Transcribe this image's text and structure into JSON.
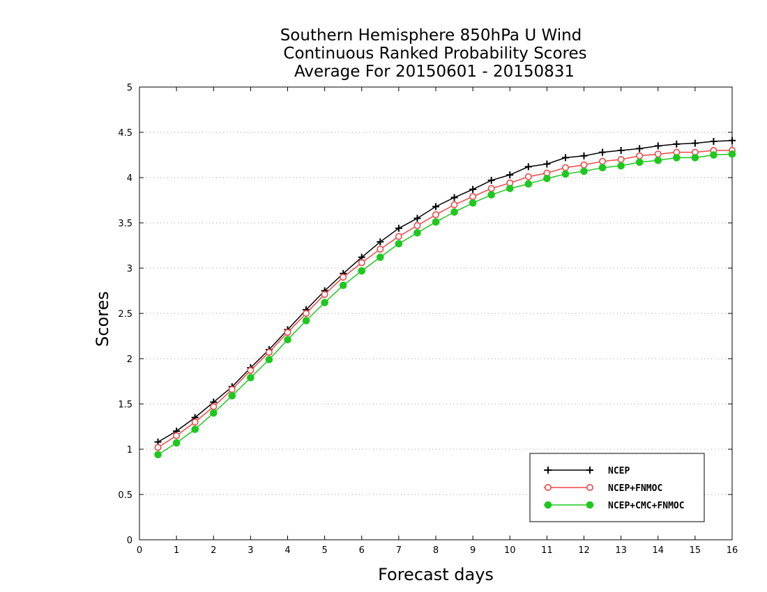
{
  "chart_data": {
    "type": "line",
    "title_lines": [
      "Southern Hemisphere 850hPa U Wind",
      "Continuous Ranked Probability Scores",
      "Average For 20150601 - 20150831"
    ],
    "xlabel": "Forecast days",
    "ylabel": "Scores",
    "xlim": [
      0,
      16
    ],
    "ylim": [
      0,
      5
    ],
    "x_ticks": [
      "0",
      "1",
      "2",
      "3",
      "4",
      "5",
      "6",
      "7",
      "8",
      "9",
      "10",
      "11",
      "12",
      "13",
      "14",
      "15",
      "16"
    ],
    "y_ticks": [
      "0",
      "0.5",
      "1",
      "1.5",
      "2",
      "2.5",
      "3",
      "3.5",
      "4",
      "4.5",
      "5"
    ],
    "grid": "horizontal dotted",
    "legend_position": "bottom-right",
    "x": [
      0.5,
      1,
      1.5,
      2,
      2.5,
      3,
      3.5,
      4,
      4.5,
      5,
      5.5,
      6,
      6.5,
      7,
      7.5,
      8,
      8.5,
      9,
      9.5,
      10,
      10.5,
      11,
      11.5,
      12,
      12.5,
      13,
      13.5,
      14,
      14.5,
      15,
      15.5,
      16
    ],
    "series": [
      {
        "name": "NCEP",
        "color": "#000000",
        "marker": "plus",
        "values": [
          1.08,
          1.2,
          1.35,
          1.52,
          1.69,
          1.9,
          2.1,
          2.32,
          2.54,
          2.75,
          2.94,
          3.12,
          3.29,
          3.44,
          3.55,
          3.68,
          3.78,
          3.87,
          3.97,
          4.03,
          4.12,
          4.15,
          4.22,
          4.24,
          4.28,
          4.3,
          4.32,
          4.35,
          4.37,
          4.38,
          4.4,
          4.41
        ]
      },
      {
        "name": "NCEP+FNMOC",
        "color": "#f04646",
        "marker": "open-circle",
        "values": [
          1.02,
          1.15,
          1.3,
          1.47,
          1.66,
          1.87,
          2.07,
          2.29,
          2.5,
          2.71,
          2.9,
          3.06,
          3.21,
          3.35,
          3.47,
          3.59,
          3.7,
          3.79,
          3.88,
          3.94,
          4.01,
          4.05,
          4.11,
          4.14,
          4.18,
          4.2,
          4.24,
          4.26,
          4.28,
          4.28,
          4.3,
          4.3
        ]
      },
      {
        "name": "NCEP+CMC+FNMOC",
        "color": "#1ec81e",
        "marker": "filled-circle",
        "values": [
          0.94,
          1.07,
          1.22,
          1.4,
          1.59,
          1.79,
          1.99,
          2.21,
          2.42,
          2.62,
          2.81,
          2.97,
          3.12,
          3.27,
          3.39,
          3.51,
          3.62,
          3.72,
          3.81,
          3.88,
          3.93,
          3.99,
          4.04,
          4.07,
          4.11,
          4.13,
          4.17,
          4.19,
          4.22,
          4.22,
          4.25,
          4.26
        ]
      }
    ]
  }
}
